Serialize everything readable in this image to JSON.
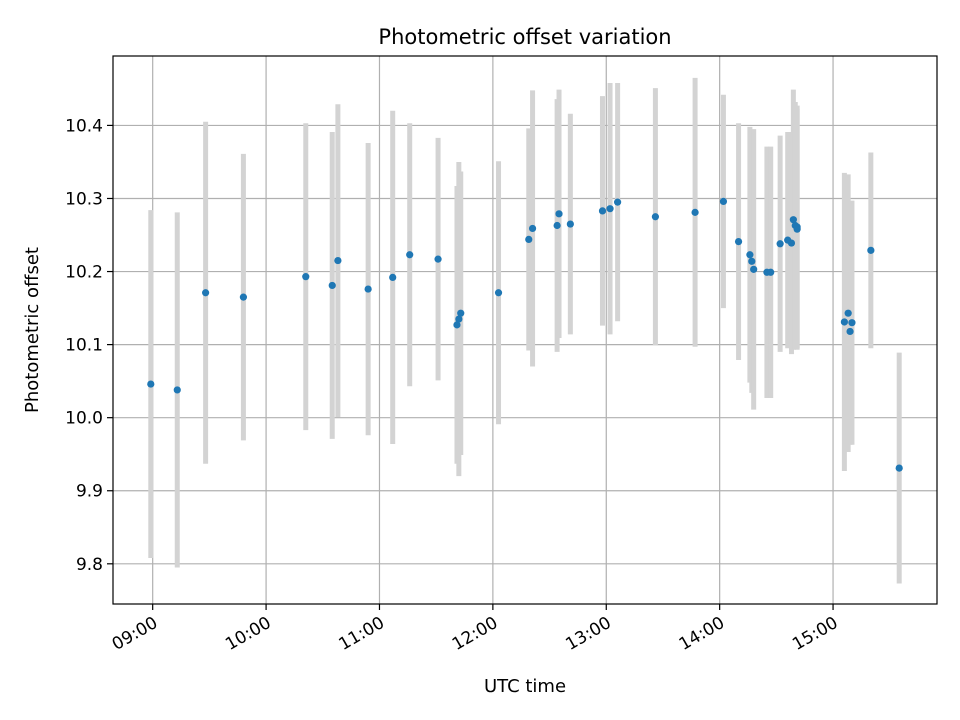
{
  "chart_data": {
    "type": "scatter",
    "title": "Photometric offset variation",
    "xlabel": "UTC time",
    "ylabel": "Photometric offset",
    "xlim": [
      "08:39",
      "15:55"
    ],
    "ylim": [
      9.745,
      10.495
    ],
    "grid": true,
    "x_ticks": [
      "09:00",
      "10:00",
      "11:00",
      "12:00",
      "13:00",
      "14:00",
      "15:00"
    ],
    "y_ticks": [
      "9.8",
      "9.9",
      "10.0",
      "10.1",
      "10.2",
      "10.3",
      "10.4"
    ],
    "point_color": "#1f77b4",
    "errorbar_color": "#d3d3d3",
    "series": [
      {
        "x": [
          "08:59",
          "09:13",
          "09:28",
          "09:48",
          "10:21",
          "10:35",
          "10:38",
          "10:54",
          "11:07",
          "11:16",
          "11:31",
          "11:41",
          "11:42",
          "11:43",
          "12:03",
          "12:19",
          "12:21",
          "12:34",
          "12:35",
          "12:41",
          "12:58",
          "13:02",
          "13:06",
          "13:26",
          "13:47",
          "14:02",
          "14:10",
          "14:16",
          "14:17",
          "14:18",
          "14:25",
          "14:27",
          "14:32",
          "14:36",
          "14:38",
          "14:39",
          "14:40",
          "14:41",
          "14:41",
          "15:06",
          "15:08",
          "15:09",
          "15:10",
          "15:20",
          "15:35"
        ],
        "y": [
          10.046,
          10.038,
          10.171,
          10.165,
          10.193,
          10.181,
          10.215,
          10.176,
          10.192,
          10.223,
          10.217,
          10.127,
          10.135,
          10.143,
          10.171,
          10.244,
          10.259,
          10.263,
          10.279,
          10.265,
          10.283,
          10.286,
          10.295,
          10.275,
          10.281,
          10.296,
          10.241,
          10.223,
          10.214,
          10.203,
          10.199,
          10.199,
          10.238,
          10.243,
          10.239,
          10.271,
          10.263,
          10.258,
          10.261,
          10.131,
          10.143,
          10.118,
          10.13,
          10.229,
          9.931
        ],
        "yerr": [
          0.238,
          0.243,
          0.234,
          0.196,
          0.21,
          0.21,
          0.214,
          0.2,
          0.228,
          0.18,
          0.166,
          0.19,
          0.215,
          0.194,
          0.18,
          0.152,
          0.189,
          0.173,
          0.17,
          0.151,
          0.157,
          0.172,
          0.163,
          0.176,
          0.184,
          0.146,
          0.162,
          0.175,
          0.18,
          0.192,
          0.172,
          0.172,
          0.148,
          0.148,
          0.152,
          0.178,
          0.169,
          0.165,
          0.166,
          0.204,
          0.19,
          0.155,
          0.167,
          0.134,
          0.158
        ]
      }
    ]
  }
}
